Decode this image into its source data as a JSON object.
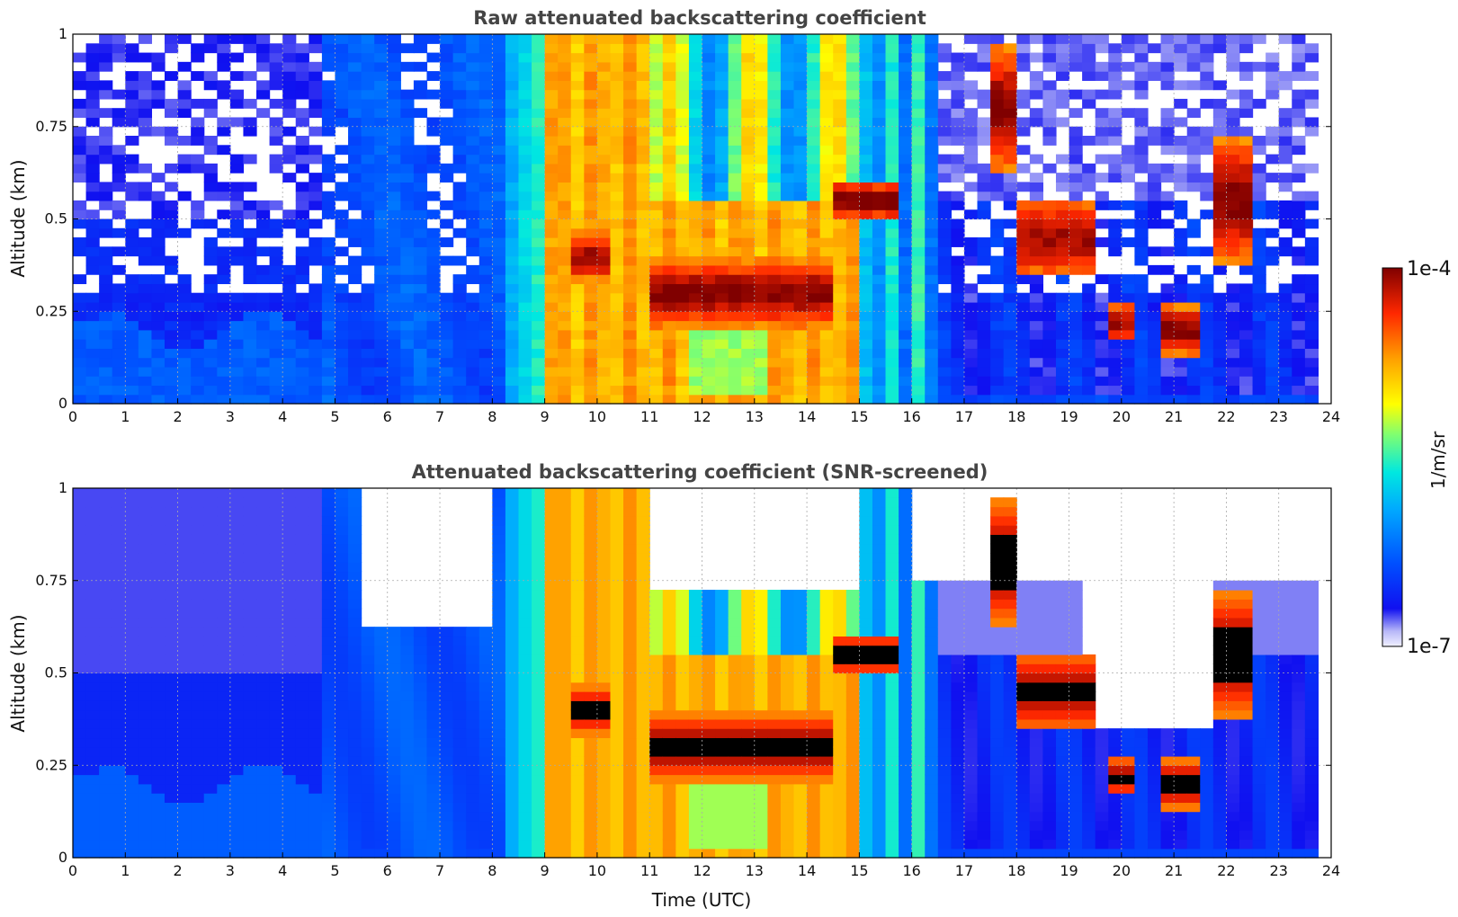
{
  "chart_data": [
    {
      "type": "heatmap",
      "title": "Raw attenuated backscattering coefficient",
      "xlabel": "",
      "ylabel": "Altitude (km)",
      "xlim": [
        0,
        24
      ],
      "ylim": [
        0,
        1
      ],
      "x_ticks": [
        "0",
        "1",
        "2",
        "3",
        "4",
        "5",
        "6",
        "7",
        "8",
        "9",
        "10",
        "11",
        "12",
        "13",
        "14",
        "15",
        "16",
        "17",
        "18",
        "19",
        "20",
        "21",
        "22",
        "23",
        "24"
      ],
      "y_ticks": [
        "0",
        "0.25",
        "0.5",
        "0.75",
        "1"
      ],
      "grid": true,
      "data_end_hour": 23.8,
      "colorscale": "jet",
      "features": [
        {
          "description": "dense aerosol / fog layer (orange-red)",
          "x_range": [
            9.1,
            15.0
          ],
          "y_range": [
            0.0,
            1.0
          ]
        },
        {
          "description": "strong cloud layer (dark red)",
          "x_range": [
            11.0,
            14.5
          ],
          "y_range": [
            0.2,
            0.45
          ]
        },
        {
          "description": "strong cloud layer (dark red)",
          "x_range": [
            14.5,
            15.5
          ],
          "y_range": [
            0.5,
            0.6
          ]
        },
        {
          "description": "low cloud (dark red)",
          "x_range": [
            20.8,
            21.5
          ],
          "y_range": [
            0.1,
            0.3
          ]
        },
        {
          "description": "low cloud (dark red)",
          "x_range": [
            19.8,
            20.1
          ],
          "y_range": [
            0.15,
            0.3
          ]
        }
      ]
    },
    {
      "type": "heatmap",
      "title": "Attenuated backscattering coefficient (SNR-screened)",
      "xlabel": "Time (UTC)",
      "ylabel": "Altitude (km)",
      "xlim": [
        0,
        24
      ],
      "ylim": [
        0,
        1
      ],
      "x_ticks": [
        "0",
        "1",
        "2",
        "3",
        "4",
        "5",
        "6",
        "7",
        "8",
        "9",
        "10",
        "11",
        "12",
        "13",
        "14",
        "15",
        "16",
        "17",
        "18",
        "19",
        "20",
        "21",
        "22",
        "23",
        "24"
      ],
      "y_ticks": [
        "0",
        "0.25",
        "0.5",
        "0.75",
        "1"
      ],
      "grid": true,
      "data_end_hour": 23.8,
      "colorscale": "jet",
      "saturated_color": "#000000"
    }
  ],
  "colorbar": {
    "label": "1/m/sr",
    "max_label": "1e-4",
    "min_label": "1e-7",
    "scale": "log",
    "range": [
      1e-07,
      0.0001
    ]
  }
}
